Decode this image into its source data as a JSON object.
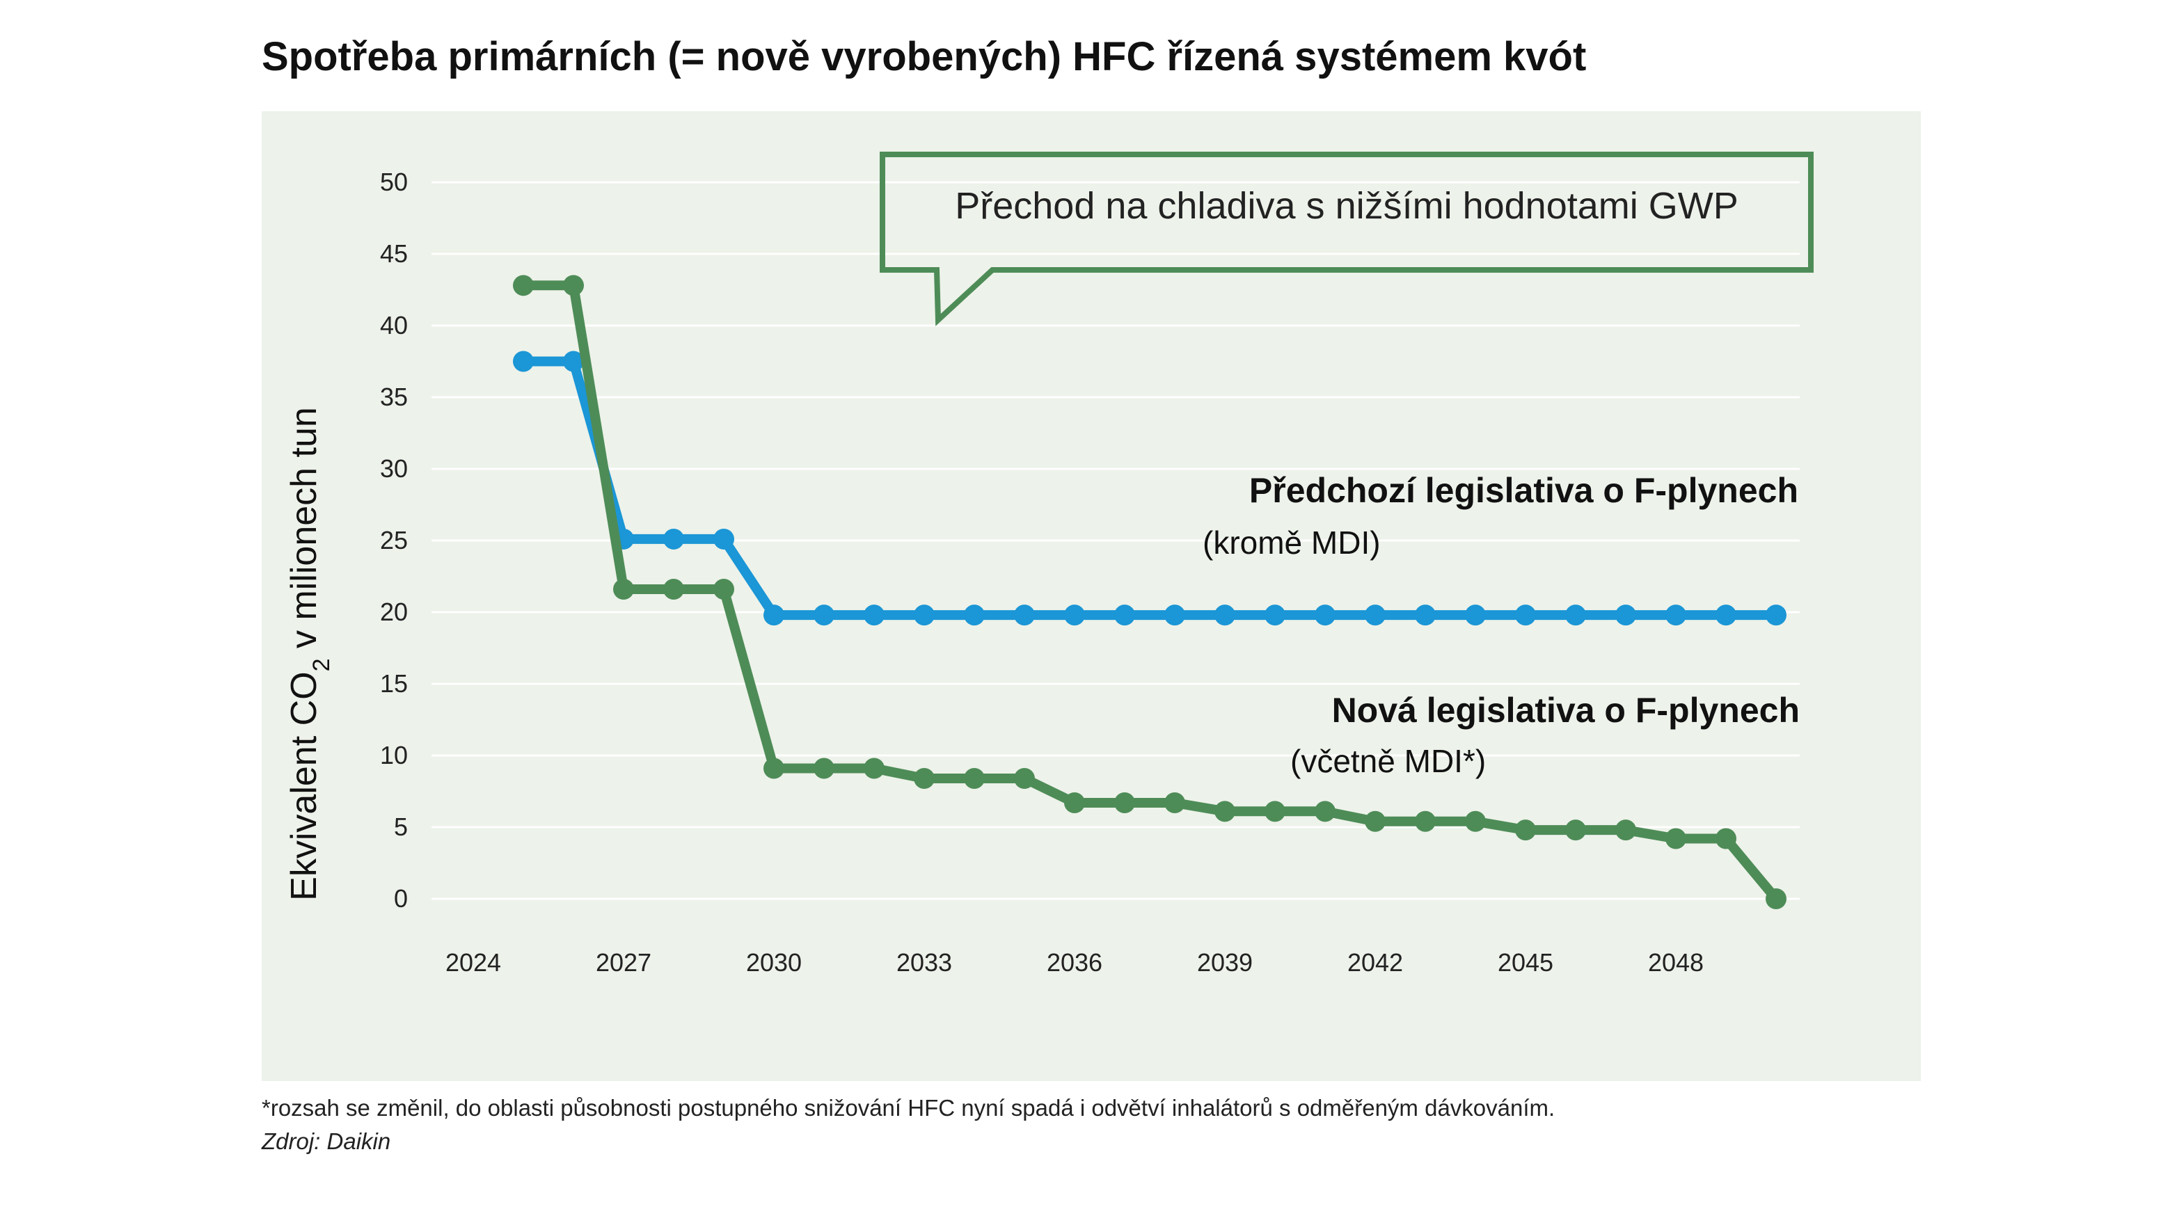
{
  "title": "Spotřeba primárních (= nově vyrobených) HFC řízená systémem kvót",
  "footnote": "*rozsah se změnil, do oblasti působnosti postupného snižování HFC nyní spadá i odvětví inhalátorů s odměřeným dávkováním.",
  "source": "Zdroj: Daikin",
  "callout": "Přechod na chladiva s nižšími hodnotami GWP",
  "colors": {
    "panel_background": "#edf2ea",
    "gridline": "#ffffff",
    "blue_series": "#1b96d6",
    "green_series": "#4e8c57",
    "callout_border": "#4e8c57"
  },
  "chart_data": {
    "type": "line",
    "ylabel_prefix": "Ekvivalent CO",
    "ylabel_subscript": "2",
    "ylabel_suffix": " v milionech tun",
    "xlabel": "",
    "ylim": [
      0,
      50
    ],
    "yticks": [
      "0",
      "5",
      "10",
      "15",
      "20",
      "25",
      "30",
      "35",
      "40",
      "45",
      "50"
    ],
    "xticks": [
      "2024",
      "2027",
      "2030",
      "2033",
      "2036",
      "2039",
      "2042",
      "2045",
      "2048"
    ],
    "xlim": [
      2024,
      2050
    ],
    "grid": true,
    "x": [
      2025,
      2026,
      2027,
      2028,
      2029,
      2030,
      2031,
      2032,
      2033,
      2034,
      2035,
      2036,
      2037,
      2038,
      2039,
      2040,
      2041,
      2042,
      2043,
      2044,
      2045,
      2046,
      2047,
      2048,
      2049,
      2050
    ],
    "series": [
      {
        "name": "Předchozí legislativa o F-plynech",
        "subtitle": "(kromě MDI)",
        "color": "#1b96d6",
        "values": [
          37.5,
          37.5,
          25.1,
          25.1,
          25.1,
          19.8,
          19.8,
          19.8,
          19.8,
          19.8,
          19.8,
          19.8,
          19.8,
          19.8,
          19.8,
          19.8,
          19.8,
          19.8,
          19.8,
          19.8,
          19.8,
          19.8,
          19.8,
          19.8,
          19.8,
          19.8
        ]
      },
      {
        "name": "Nová legislativa o F-plynech",
        "subtitle": "(včetně MDI*)",
        "color": "#4e8c57",
        "values": [
          42.8,
          42.8,
          21.6,
          21.6,
          21.6,
          9.1,
          9.1,
          9.1,
          8.4,
          8.4,
          8.4,
          6.7,
          6.7,
          6.7,
          6.1,
          6.1,
          6.1,
          5.4,
          5.4,
          5.4,
          4.8,
          4.8,
          4.8,
          4.2,
          4.2,
          0
        ]
      }
    ]
  }
}
